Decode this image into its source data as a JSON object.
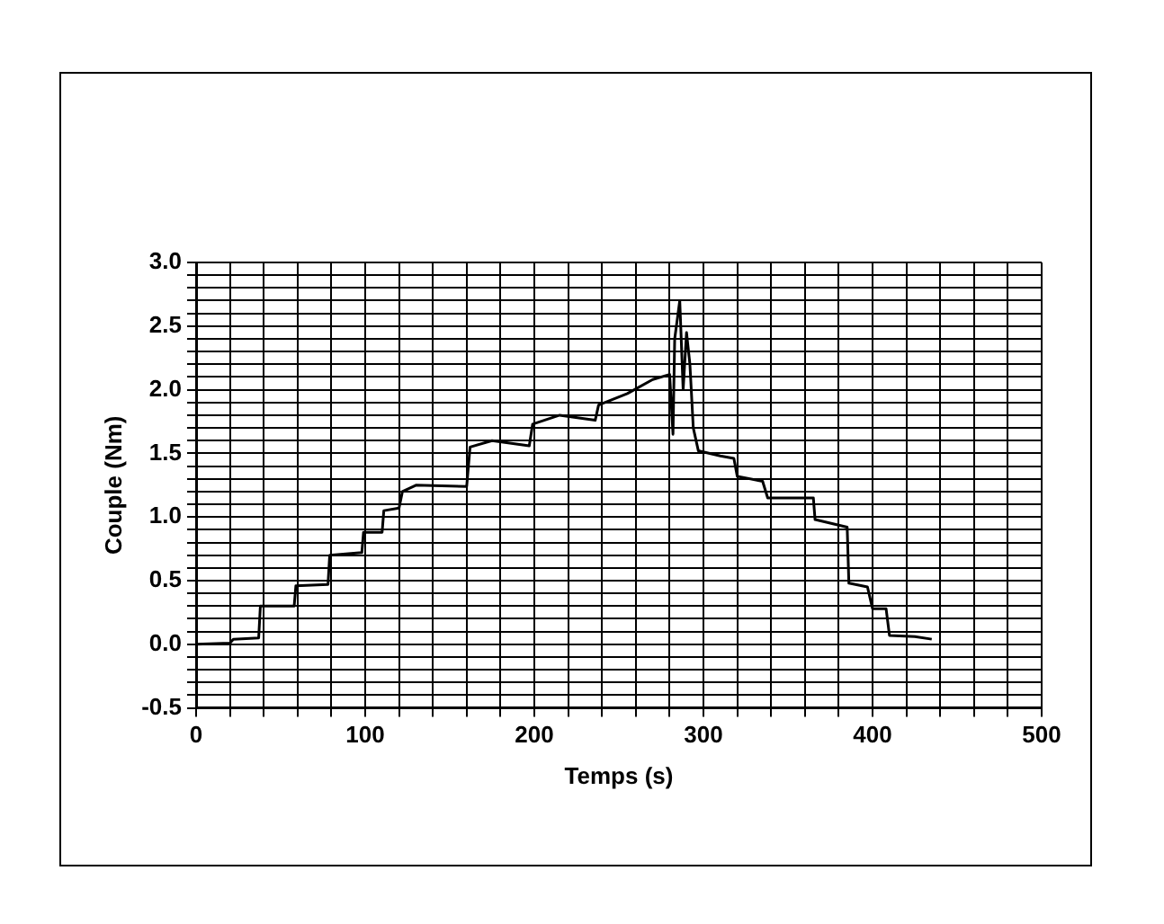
{
  "chart_data": {
    "type": "line",
    "xlabel": "Temps (s)",
    "ylabel": "Couple (Nm)",
    "grid": true,
    "legend": false,
    "marker": "none",
    "line_style": "solid",
    "xlim": [
      0,
      500
    ],
    "xticks": [
      0,
      {
        "value": 20,
        "label": null
      },
      {
        "value": 40,
        "label": null
      },
      {
        "value": 60,
        "label": null
      },
      {
        "value": 80,
        "label": null
      },
      100,
      {
        "value": 120,
        "label": null
      },
      {
        "value": 140,
        "label": null
      },
      {
        "value": 160,
        "label": null
      },
      {
        "value": 180,
        "label": null
      },
      200,
      {
        "value": 220,
        "label": null
      },
      {
        "value": 240,
        "label": null
      },
      {
        "value": 260,
        "label": null
      },
      {
        "value": 280,
        "label": null
      },
      300,
      {
        "value": 320,
        "label": null
      },
      {
        "value": 340,
        "label": null
      },
      {
        "value": 360,
        "label": null
      },
      {
        "value": 380,
        "label": null
      },
      400,
      {
        "value": 420,
        "label": null
      },
      {
        "value": 440,
        "label": null
      },
      {
        "value": 460,
        "label": null
      },
      {
        "value": 480,
        "label": null
      },
      500
    ],
    "ylim": [
      -0.5,
      3.0
    ],
    "yticks": [
      {
        "value": -0.5,
        "label": "-0.5"
      },
      {
        "value": -0.4,
        "label": null
      },
      {
        "value": -0.3,
        "label": null
      },
      {
        "value": -0.2,
        "label": null
      },
      {
        "value": -0.1,
        "label": null
      },
      {
        "value": 0,
        "label": "0.0"
      },
      {
        "value": 0.1,
        "label": null
      },
      {
        "value": 0.2,
        "label": null
      },
      {
        "value": 0.3,
        "label": null
      },
      {
        "value": 0.4,
        "label": null
      },
      {
        "value": 0.5,
        "label": "0.5"
      },
      {
        "value": 0.6,
        "label": null
      },
      {
        "value": 0.7,
        "label": null
      },
      {
        "value": 0.8,
        "label": null
      },
      {
        "value": 0.9,
        "label": null
      },
      {
        "value": 1.0,
        "label": "1.0"
      },
      {
        "value": 1.1,
        "label": null
      },
      {
        "value": 1.2,
        "label": null
      },
      {
        "value": 1.3,
        "label": null
      },
      {
        "value": 1.4,
        "label": null
      },
      {
        "value": 1.5,
        "label": "1.5"
      },
      {
        "value": 1.6,
        "label": null
      },
      {
        "value": 1.7,
        "label": null
      },
      {
        "value": 1.8,
        "label": null
      },
      {
        "value": 1.9,
        "label": null
      },
      {
        "value": 2.0,
        "label": "2.0"
      },
      {
        "value": 2.1,
        "label": null
      },
      {
        "value": 2.2,
        "label": null
      },
      {
        "value": 2.3,
        "label": null
      },
      {
        "value": 2.4,
        "label": null
      },
      {
        "value": 2.5,
        "label": "2.5"
      },
      {
        "value": 2.6,
        "label": null
      },
      {
        "value": 2.7,
        "label": null
      },
      {
        "value": 2.8,
        "label": null
      },
      {
        "value": 2.9,
        "label": null
      },
      {
        "value": 3.0,
        "label": "3.0"
      }
    ],
    "series": [
      {
        "color": "#000000",
        "x": [
          0,
          20,
          22,
          37,
          38,
          58,
          59,
          78,
          79,
          98,
          99,
          110,
          111,
          120,
          122,
          130,
          160,
          162,
          175,
          197,
          199,
          215,
          236,
          238,
          255,
          270,
          280,
          282,
          283,
          286,
          288,
          290,
          292,
          294,
          297,
          310,
          318,
          320,
          335,
          338,
          340,
          365,
          366,
          385,
          386,
          397,
          400,
          408,
          410,
          425,
          435
        ],
        "values": [
          0.0,
          0.01,
          0.04,
          0.05,
          0.3,
          0.3,
          0.46,
          0.47,
          0.7,
          0.72,
          0.88,
          0.88,
          1.05,
          1.07,
          1.2,
          1.25,
          1.24,
          1.55,
          1.6,
          1.56,
          1.73,
          1.8,
          1.76,
          1.88,
          1.97,
          2.08,
          2.12,
          1.65,
          2.4,
          2.7,
          2.0,
          2.45,
          2.2,
          1.7,
          1.52,
          1.48,
          1.46,
          1.32,
          1.28,
          1.15,
          1.15,
          1.15,
          0.98,
          0.92,
          0.48,
          0.45,
          0.28,
          0.28,
          0.07,
          0.06,
          0.04
        ]
      }
    ]
  }
}
